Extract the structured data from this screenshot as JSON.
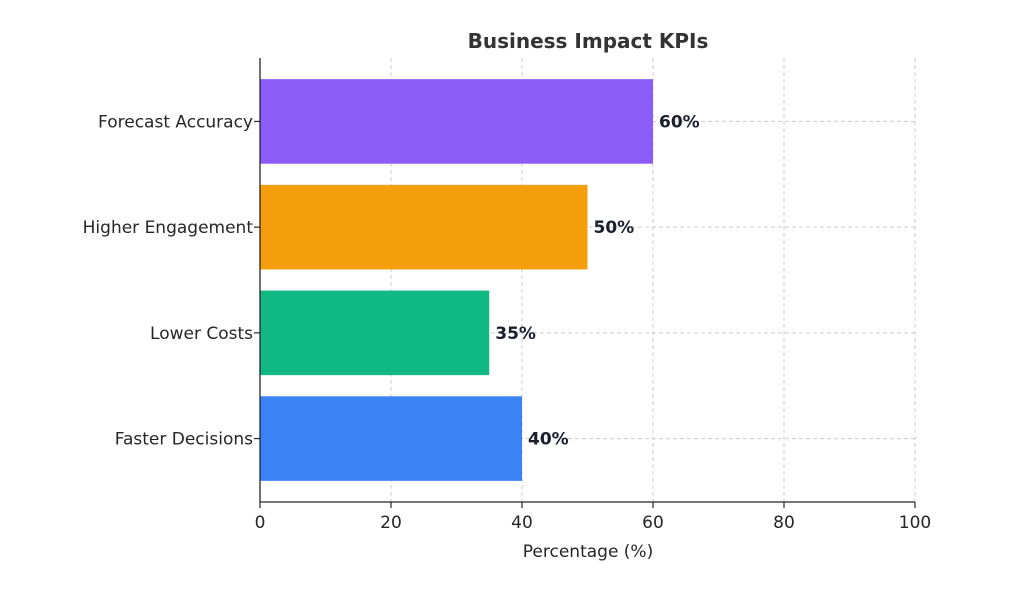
{
  "chart_data": {
    "type": "bar",
    "orientation": "horizontal",
    "title": "Business Impact KPIs",
    "xlabel": "Percentage (%)",
    "ylabel": "",
    "xlim": [
      0,
      100
    ],
    "xticks": [
      0,
      20,
      40,
      60,
      80,
      100
    ],
    "xtick_labels": [
      "0",
      "20",
      "40",
      "60",
      "80",
      "100"
    ],
    "grid": true,
    "categories": [
      "Faster Decisions",
      "Lower Costs",
      "Higher Engagement",
      "Forecast Accuracy"
    ],
    "values": [
      40,
      35,
      50,
      60
    ],
    "value_labels": [
      "40%",
      "35%",
      "50%",
      "60%"
    ],
    "colors": [
      "#3b82f6",
      "#10b981",
      "#f59e0b",
      "#8b5cf6"
    ]
  }
}
